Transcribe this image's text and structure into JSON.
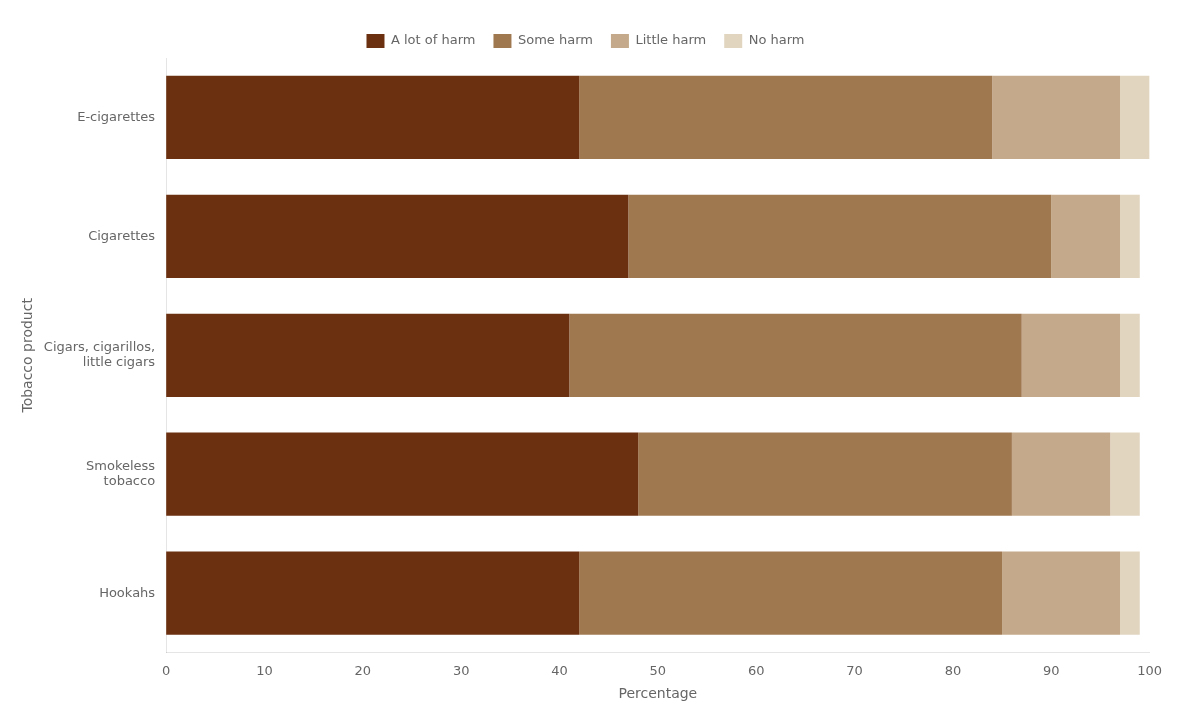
{
  "chart_data": {
    "type": "bar",
    "orientation": "horizontal",
    "stacked": true,
    "categories": [
      "E-cigarettes",
      "Cigarettes",
      "Cigars, cigarillos,\nlittle cigars",
      "Smokeless\ntobacco",
      "Hookahs"
    ],
    "series": [
      {
        "name": "A lot of harm",
        "color": "#6B3010",
        "values": [
          42.0,
          47.0,
          41.0,
          48.0,
          42.0
        ]
      },
      {
        "name": "Some harm",
        "color": "#A07850",
        "values": [
          42.0,
          43.0,
          46.0,
          38.0,
          43.0
        ]
      },
      {
        "name": "Little harm",
        "color": "#C4AA8A",
        "values": [
          13.0,
          7.0,
          10.0,
          10.0,
          12.0
        ]
      },
      {
        "name": "No harm",
        "color": "#E2D5C0",
        "values": [
          3.0,
          2.0,
          2.0,
          3.0,
          2.0
        ]
      }
    ],
    "xlabel": "Percentage",
    "ylabel": "Tobacco product",
    "xlim": [
      0,
      100
    ],
    "xticks": [
      0,
      10,
      20,
      30,
      40,
      50,
      60,
      70,
      80,
      90,
      100
    ],
    "legend": "top",
    "grid": false
  }
}
